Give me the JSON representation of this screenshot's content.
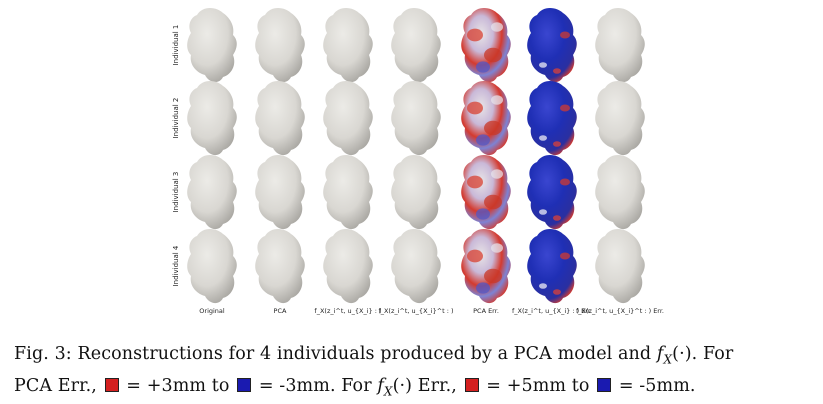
{
  "figure": {
    "row_labels": [
      "Individual 1",
      "Individual 2",
      "Individual 3",
      "Individual 4"
    ],
    "column_labels": [
      "Original",
      "PCA",
      "f_X(z_i^t, u_{X_i} : )",
      "f_X(z_i^t, u_{X_i}^t : )",
      "PCA Err.",
      "f_X(z_i^t, u_{X_i} : ) Err.",
      "f_X(z_i^t, u_{X_i}^t : ) Err."
    ],
    "colors": {
      "bone": "#d9d7d2",
      "bone_shadow": "#a9a7a2",
      "err_red": "#d43a2e",
      "err_blue": "#1f2fb5",
      "err_white": "#e8e4e6"
    }
  },
  "caption": {
    "line1_prefix": "Fig. 3: Reconstructions for 4 individuals produced by a PCA model and ",
    "fx": "f",
    "fx_sub": "X",
    "fx_args": "(·). For",
    "line2_a": "PCA Err., ",
    "eq1": " = +3mm to ",
    "eq2": " = -3mm. For ",
    "fx2_args": "(·) Err., ",
    "eq3": " = +5mm to ",
    "eq4": " = -5mm.",
    "swatch_red": "#d42020",
    "swatch_blue": "#1a1ab0"
  }
}
